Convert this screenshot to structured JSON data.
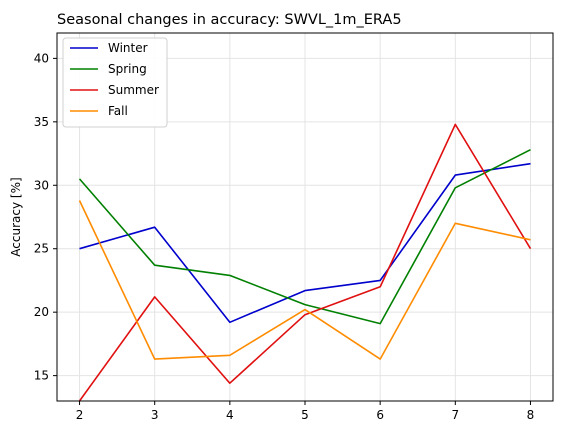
{
  "chart_data": {
    "type": "line",
    "title": "Seasonal changes in accuracy: SWVL_1m_ERA5",
    "xlabel": "",
    "ylabel": "Accuracy [%]",
    "x": [
      2,
      3,
      4,
      5,
      6,
      7,
      8
    ],
    "xticks": [
      "2",
      "3",
      "4",
      "5",
      "6",
      "7",
      "8"
    ],
    "yticks": [
      "15",
      "20",
      "25",
      "30",
      "35",
      "40"
    ],
    "ytick_values": [
      15,
      20,
      25,
      30,
      35,
      40
    ],
    "xlim": [
      1.7,
      8.3
    ],
    "ylim": [
      13,
      42
    ],
    "grid": true,
    "legend_position": "top-left",
    "series": [
      {
        "name": "Winter",
        "color": "#0000cc",
        "values": [
          25.0,
          26.7,
          19.2,
          21.7,
          22.5,
          30.8,
          31.7
        ]
      },
      {
        "name": "Spring",
        "color": "#008000",
        "values": [
          30.5,
          23.7,
          22.9,
          20.6,
          19.1,
          29.8,
          32.8
        ]
      },
      {
        "name": "Summer",
        "color": "#e01010",
        "values": [
          13.0,
          21.2,
          14.4,
          19.8,
          22.0,
          34.8,
          25.0
        ]
      },
      {
        "name": "Fall",
        "color": "#ff8c00",
        "values": [
          28.8,
          16.3,
          16.6,
          20.2,
          16.3,
          27.0,
          25.7
        ]
      }
    ]
  }
}
